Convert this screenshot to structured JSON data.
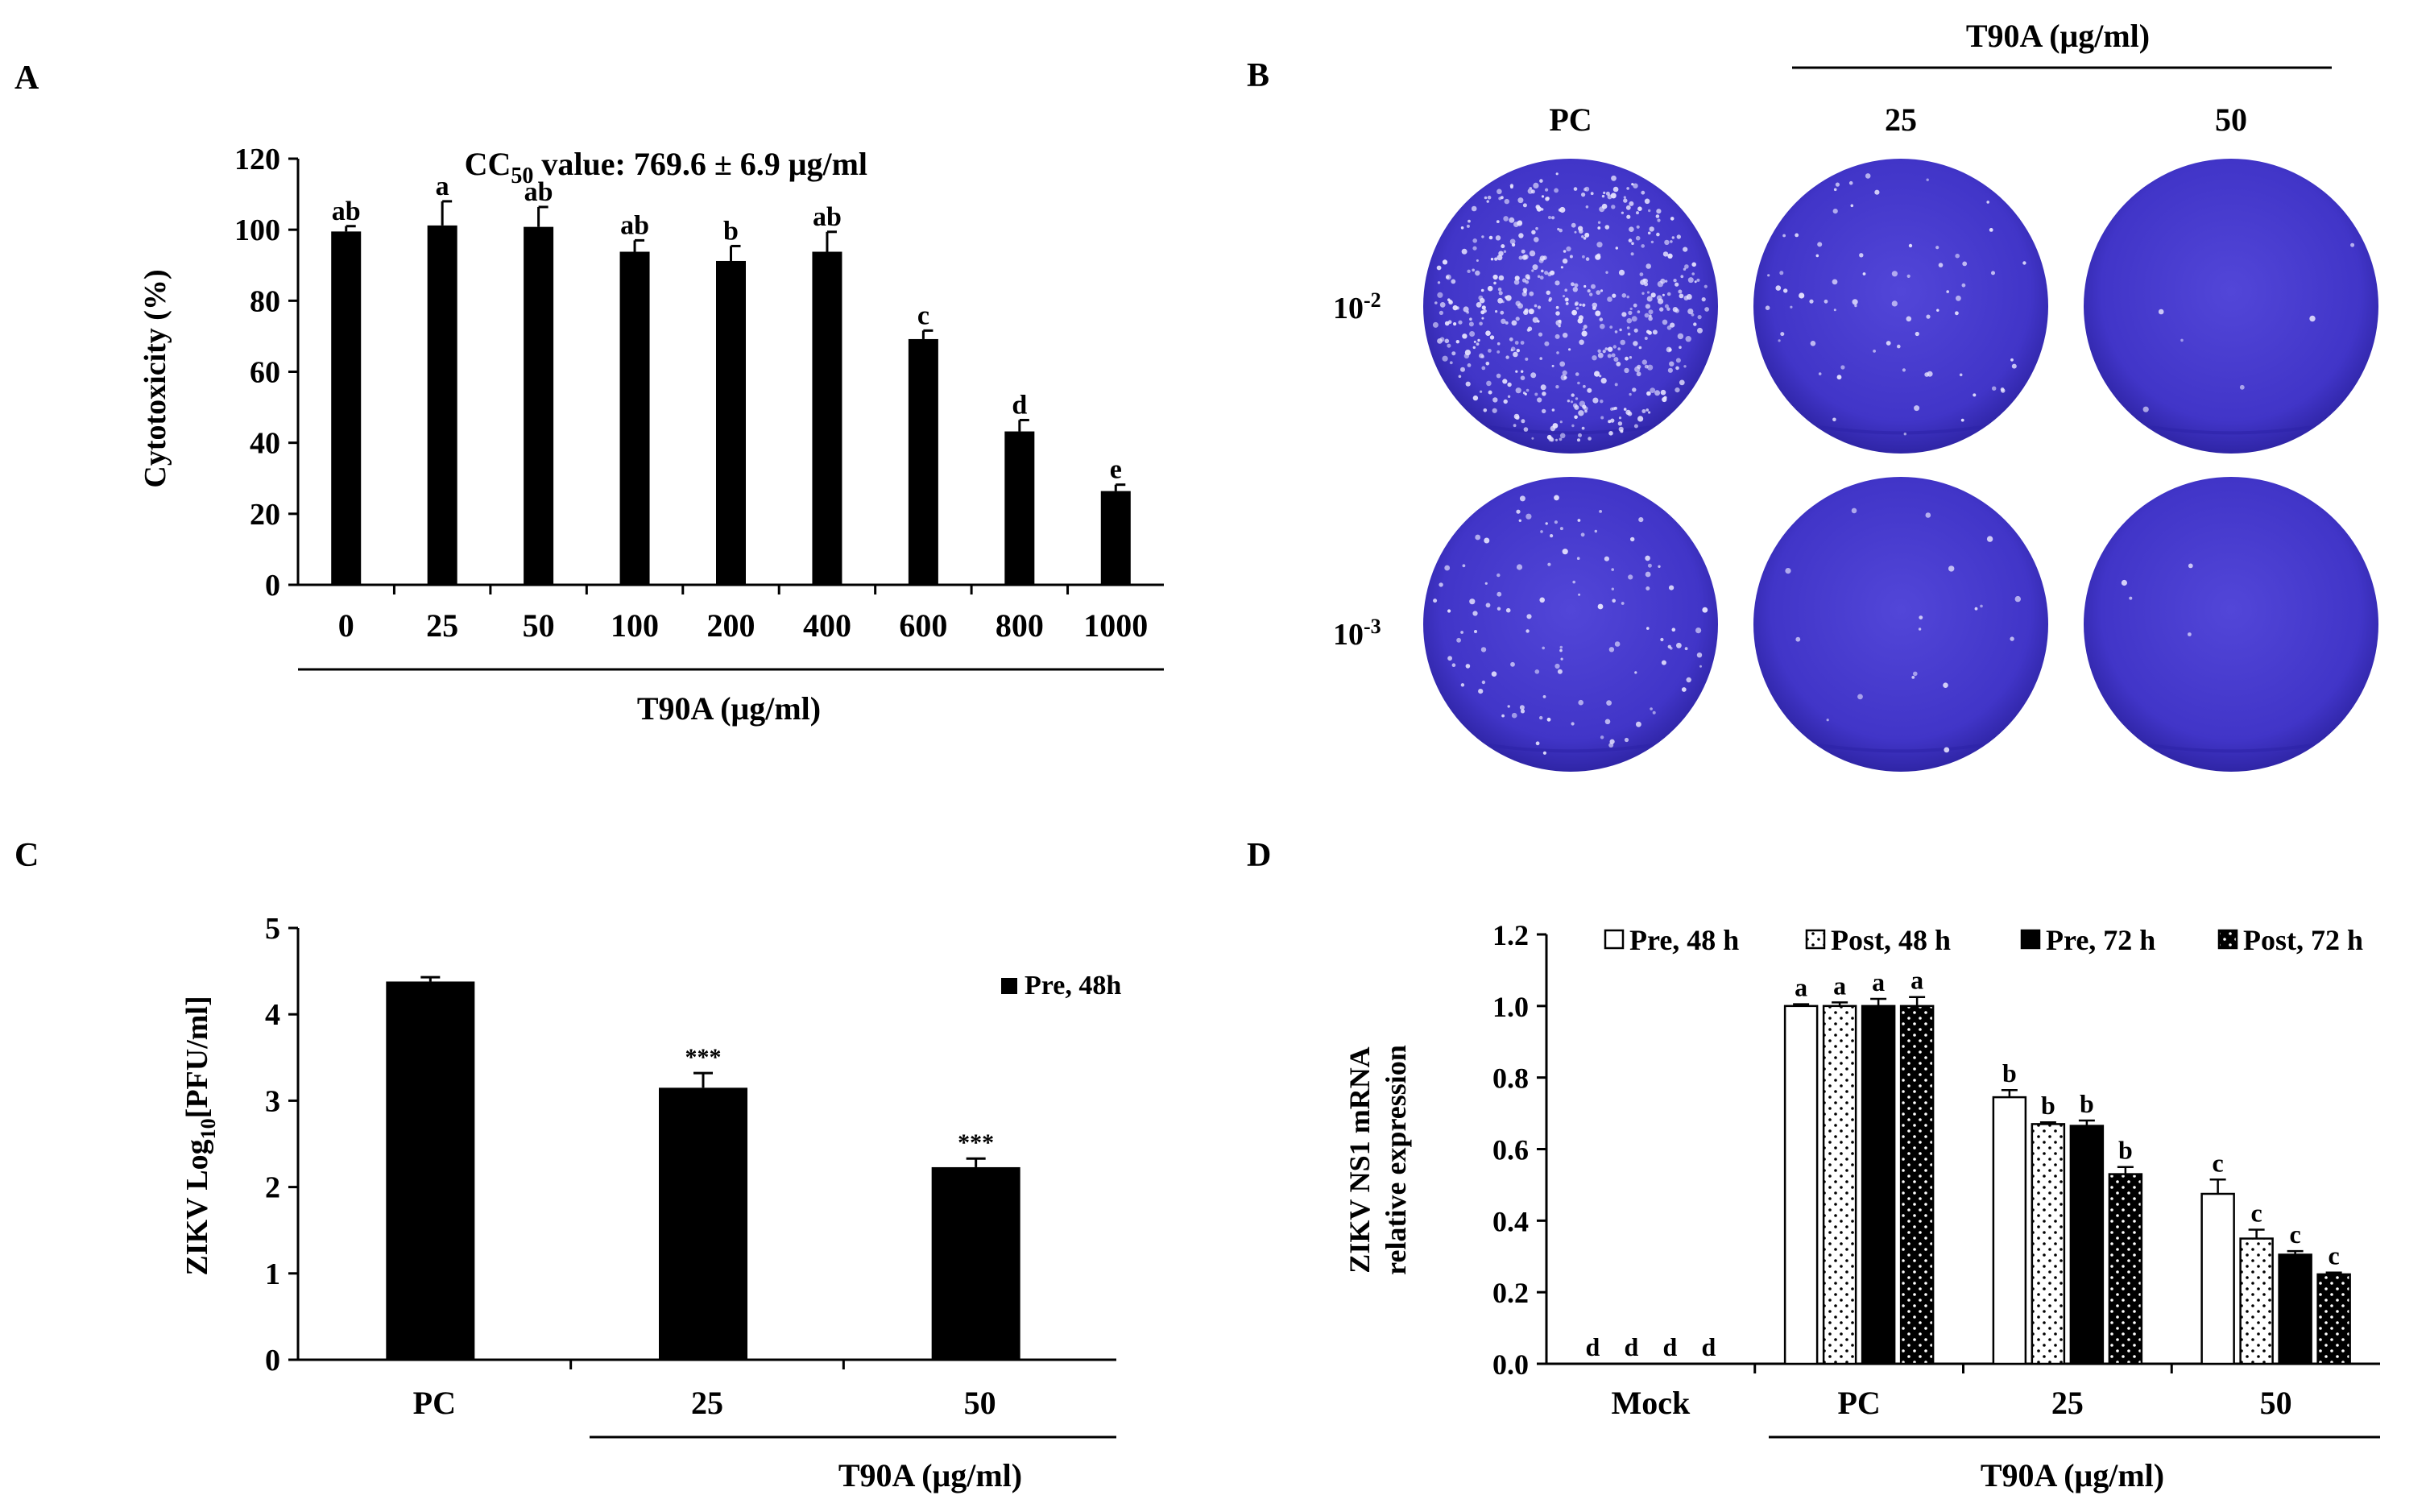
{
  "panels": {
    "A": {
      "letter": "A",
      "chart_data": {
        "type": "bar",
        "categories": [
          "0",
          "25",
          "50",
          "100",
          "200",
          "400",
          "600",
          "800",
          "1000"
        ],
        "values": [
          99.5,
          101.2,
          100.8,
          93.8,
          91.2,
          93.8,
          69.2,
          43.2,
          26.4
        ],
        "errors": [
          1.5,
          6.8,
          5.6,
          3.2,
          4.2,
          5.6,
          2.4,
          3.2,
          1.8
        ],
        "letters": [
          "ab",
          "a",
          "ab",
          "ab",
          "b",
          "ab",
          "c",
          "d",
          "e"
        ],
        "ylabel": "Cytotoxicity (%)",
        "xlabel": "T90A (μg/ml)",
        "ylim": [
          0,
          120
        ],
        "yticks": [
          0,
          20,
          40,
          60,
          80,
          100,
          120
        ],
        "annotation": {
          "prefix": "CC",
          "sub": "50",
          "suffix": " value: 769.6 ± 6.9 μg/ml"
        }
      }
    },
    "B": {
      "letter": "B",
      "header": "T90A (μg/ml)",
      "columns": [
        "PC",
        "25",
        "50"
      ],
      "rows": [
        {
          "base": "10",
          "exp": "-2"
        },
        {
          "base": "10",
          "exp": "-3"
        }
      ]
    },
    "C": {
      "letter": "C",
      "chart_data": {
        "type": "bar",
        "categories": [
          "PC",
          "25",
          "50"
        ],
        "values": [
          4.38,
          3.15,
          2.23
        ],
        "errors": [
          0.05,
          0.17,
          0.1
        ],
        "sig": [
          "",
          "***",
          "***"
        ],
        "legend": "Pre, 48h",
        "ylabel_main": "ZIKV Log",
        "ylabel_sub": "10",
        "ylabel_tail": "[PFU/ml]",
        "xlabel": "T90A (μg/ml)",
        "ylim": [
          0,
          5
        ],
        "yticks": [
          0,
          1,
          2,
          3,
          4,
          5
        ]
      }
    },
    "D": {
      "letter": "D",
      "chart_data": {
        "type": "bar",
        "categories": [
          "Mock",
          "PC",
          "25",
          "50"
        ],
        "series": [
          {
            "name": "Pre, 48 h",
            "fill": "white",
            "values": [
              0,
              1.0,
              0.745,
              0.475
            ],
            "errors": [
              0,
              0.005,
              0.02,
              0.04
            ],
            "letters": [
              "d",
              "a",
              "b",
              "c"
            ]
          },
          {
            "name": "Post, 48 h",
            "fill": "dots-white",
            "values": [
              0,
              1.0,
              0.67,
              0.35
            ],
            "errors": [
              0,
              0.01,
              0.005,
              0.025
            ],
            "letters": [
              "d",
              "a",
              "b",
              "c"
            ]
          },
          {
            "name": "Pre, 72 h",
            "fill": "black",
            "values": [
              0,
              1.0,
              0.665,
              0.305
            ],
            "errors": [
              0,
              0.02,
              0.015,
              0.01
            ],
            "letters": [
              "d",
              "a",
              "b",
              "c"
            ]
          },
          {
            "name": "Post, 72 h",
            "fill": "dots-black",
            "values": [
              0,
              1.0,
              0.53,
              0.25
            ],
            "errors": [
              0,
              0.025,
              0.02,
              0.005
            ],
            "letters": [
              "d",
              "a",
              "b",
              "c"
            ]
          }
        ],
        "ylabel_line1": "ZIKV NS1 mRNA",
        "ylabel_line2": "relative expression",
        "xlabel": "T90A (μg/ml)",
        "ylim": [
          0,
          1.2
        ],
        "yticks": [
          "0.0",
          "0.2",
          "0.4",
          "0.6",
          "0.8",
          "1.0",
          "1.2"
        ]
      }
    }
  },
  "colors": {
    "bar": "#000000",
    "plate": "#4a3fd0",
    "plate_dark": "#2d23a8",
    "plate_light": "#6a5fe0"
  }
}
